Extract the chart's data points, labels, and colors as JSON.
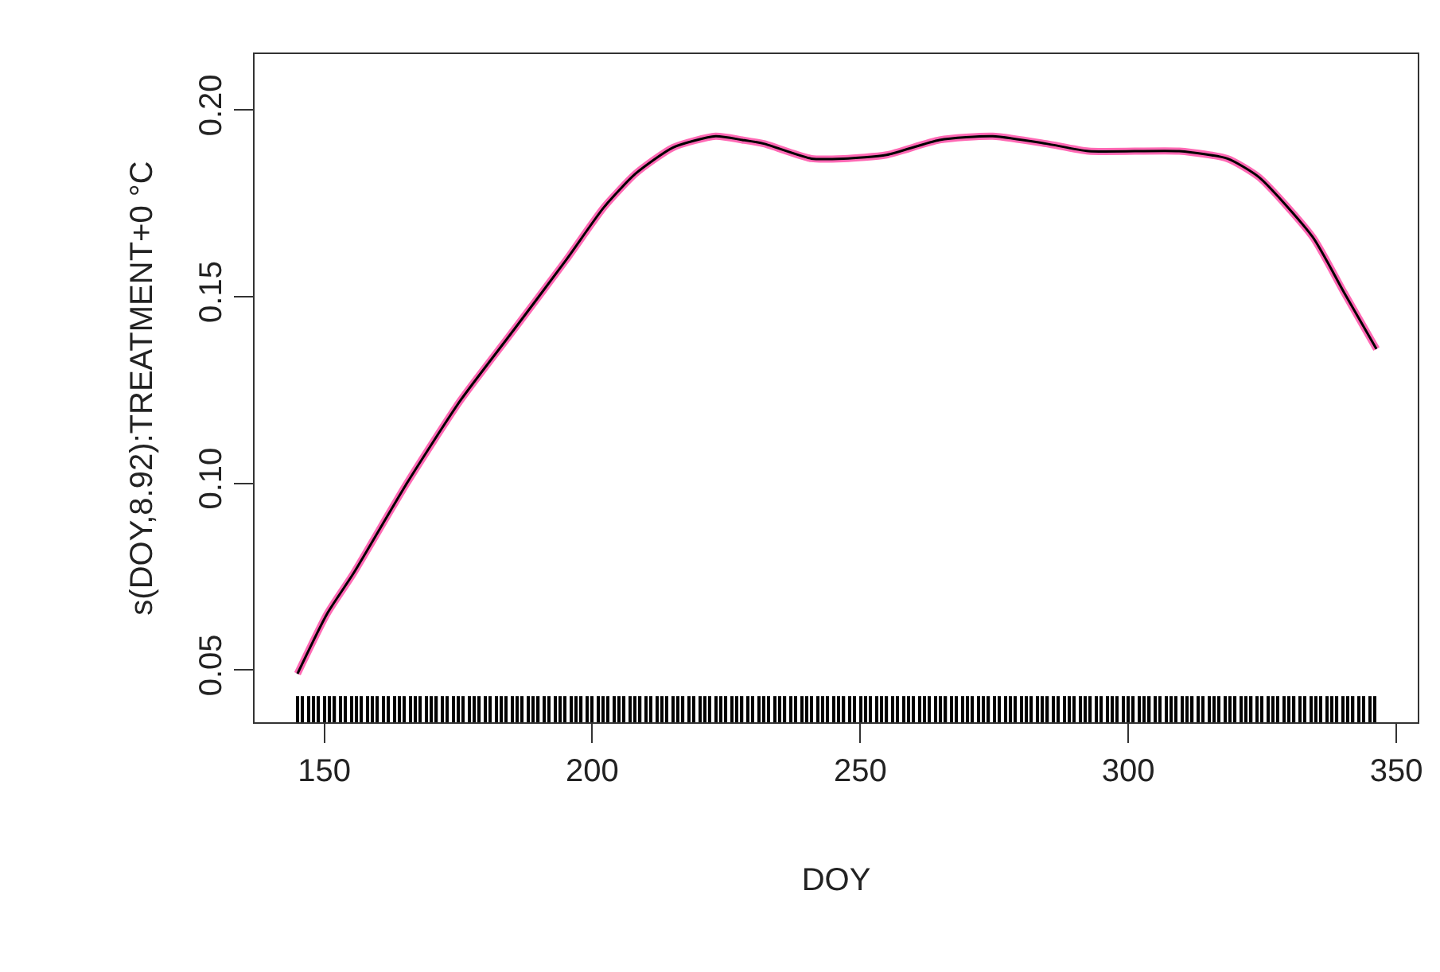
{
  "chart_data": {
    "type": "line",
    "xlabel": "DOY",
    "ylabel": "s(DOY,8.92):TREATMENT+0 °C",
    "xlim": [
      137,
      354
    ],
    "ylim": [
      0.036,
      0.215
    ],
    "xticks": [
      150,
      200,
      250,
      300,
      350
    ],
    "yticks": [
      {
        "value": 0.05,
        "label": "0.05"
      },
      {
        "value": 0.1,
        "label": "0.10"
      },
      {
        "value": 0.15,
        "label": "0.15"
      },
      {
        "value": 0.2,
        "label": "0.20"
      }
    ],
    "series": [
      {
        "color": "#ff69b4",
        "line_style": "solid",
        "marker": "none",
        "x": [
          145,
          150.5,
          155.5,
          165.4,
          175.3,
          185.3,
          195.2,
          202.2,
          208.1,
          215.1,
          223,
          228,
          232,
          240.9,
          246.9,
          254.9,
          264.8,
          274.7,
          284.7,
          292.6,
          309.5,
          318.5,
          324.4,
          334.4,
          340.3,
          346.3
        ],
        "values": [
          0.049,
          0.065,
          0.076,
          0.1,
          0.122,
          0.141,
          0.16,
          0.174,
          0.183,
          0.19,
          0.193,
          0.192,
          0.191,
          0.187,
          0.187,
          0.188,
          0.192,
          0.193,
          0.191,
          0.189,
          0.189,
          0.187,
          0.182,
          0.166,
          0.151,
          0.136
        ]
      },
      {
        "color": "#000000",
        "line_style": "solid",
        "marker": "none",
        "x": [
          145,
          150.5,
          155.5,
          165.4,
          175.3,
          185.3,
          195.2,
          202.2,
          208.1,
          215.1,
          223,
          228,
          232,
          240.9,
          246.9,
          254.9,
          264.8,
          274.7,
          284.7,
          292.6,
          309.5,
          318.5,
          324.4,
          334.4,
          340.3,
          346.3
        ],
        "values": [
          0.049,
          0.065,
          0.076,
          0.1,
          0.122,
          0.141,
          0.16,
          0.174,
          0.183,
          0.19,
          0.193,
          0.192,
          0.191,
          0.187,
          0.187,
          0.188,
          0.192,
          0.193,
          0.191,
          0.189,
          0.189,
          0.187,
          0.182,
          0.166,
          0.151,
          0.136
        ]
      },
      {
        "type": "bar",
        "color": "#000000",
        "x": [
          145,
          146,
          147,
          148,
          149,
          150,
          151,
          152,
          153,
          154,
          155,
          156,
          157,
          158,
          159,
          160,
          161,
          162,
          163,
          164,
          165,
          166,
          167,
          168,
          169,
          170,
          171,
          172,
          173,
          174,
          175,
          176,
          177,
          178,
          179,
          180,
          181,
          182,
          183,
          184,
          185,
          186,
          187,
          188,
          189,
          190,
          191,
          192,
          193,
          194,
          195,
          196,
          197,
          198,
          199,
          200,
          201,
          202,
          203,
          204,
          205,
          206,
          207,
          208,
          209,
          210,
          211,
          212,
          213,
          214,
          215,
          216,
          217,
          218,
          219,
          220,
          221,
          222,
          223,
          224,
          225,
          226,
          227,
          228,
          229,
          230,
          231,
          232,
          233,
          234,
          235,
          236,
          237,
          238,
          239,
          240,
          241,
          242,
          243,
          244,
          245,
          246,
          247,
          248,
          249,
          250,
          251,
          252,
          253,
          254,
          255,
          256,
          257,
          258,
          259,
          260,
          261,
          262,
          263,
          264,
          265,
          266,
          267,
          268,
          269,
          270,
          271,
          272,
          273,
          274,
          275,
          276,
          277,
          278,
          279,
          280,
          281,
          282,
          283,
          284,
          285,
          286,
          287,
          288,
          289,
          290,
          291,
          292,
          293,
          294,
          295,
          296,
          297,
          298,
          299,
          300,
          301,
          302,
          303,
          304,
          305,
          306,
          307,
          308,
          309,
          310,
          311,
          312,
          313,
          314,
          315,
          316,
          317,
          318,
          319,
          320,
          321,
          322,
          323,
          324,
          325,
          326,
          327,
          328,
          329,
          330,
          331,
          332,
          333,
          334,
          335,
          336,
          337,
          338,
          339,
          340,
          341,
          342,
          343,
          344,
          345,
          346
        ],
        "values": [
          0.007,
          0.007,
          0.007,
          0.007,
          0.007,
          0.007,
          0.007,
          0.007,
          0.007,
          0.007,
          0.007,
          0.007,
          0.007,
          0.007,
          0.007,
          0.007,
          0.007,
          0.007,
          0.007,
          0.007,
          0.007,
          0.007,
          0.007,
          0.007,
          0.007,
          0.007,
          0.007,
          0.007,
          0.007,
          0.007,
          0.007,
          0.007,
          0.007,
          0.007,
          0.007,
          0.007,
          0.007,
          0.007,
          0.007,
          0.007,
          0.007,
          0.007,
          0.007,
          0.007,
          0.007,
          0.007,
          0.007,
          0.007,
          0.007,
          0.007,
          0.007,
          0.007,
          0.007,
          0.007,
          0.007,
          0.007,
          0.007,
          0.007,
          0.007,
          0.007,
          0.007,
          0.007,
          0.007,
          0.007,
          0.007,
          0.007,
          0.007,
          0.007,
          0.007,
          0.007,
          0.007,
          0.007,
          0.007,
          0.007,
          0.007,
          0.007,
          0.007,
          0.007,
          0.007,
          0.007,
          0.007,
          0.007,
          0.007,
          0.007,
          0.007,
          0.007,
          0.007,
          0.007,
          0.007,
          0.007,
          0.007,
          0.007,
          0.007,
          0.007,
          0.007,
          0.007,
          0.007,
          0.007,
          0.007,
          0.007,
          0.007,
          0.007,
          0.007,
          0.007,
          0.007,
          0.007,
          0.007,
          0.007,
          0.007,
          0.007,
          0.007,
          0.007,
          0.007,
          0.007,
          0.007,
          0.007,
          0.007,
          0.007,
          0.007,
          0.007,
          0.007,
          0.007,
          0.007,
          0.007,
          0.007,
          0.007,
          0.007,
          0.007,
          0.007,
          0.007,
          0.007,
          0.007,
          0.007,
          0.007,
          0.007,
          0.007,
          0.007,
          0.007,
          0.007,
          0.007,
          0.007,
          0.007,
          0.007,
          0.007,
          0.007,
          0.007,
          0.007,
          0.007,
          0.007,
          0.007,
          0.007,
          0.007,
          0.007,
          0.007,
          0.007,
          0.007,
          0.007,
          0.007,
          0.007,
          0.007,
          0.007,
          0.007,
          0.007,
          0.007,
          0.007,
          0.007,
          0.007,
          0.007,
          0.007,
          0.007,
          0.007,
          0.007,
          0.007,
          0.007,
          0.007,
          0.007,
          0.007,
          0.007,
          0.007,
          0.007,
          0.007,
          0.007,
          0.007,
          0.007,
          0.007,
          0.007,
          0.007,
          0.007,
          0.007,
          0.007,
          0.007,
          0.007,
          0.007,
          0.007,
          0.007,
          0.007,
          0.007,
          0.007,
          0.007,
          0.007,
          0.007,
          0.007
        ],
        "base": [
          0.036,
          0.036,
          0.036,
          0.036,
          0.036,
          0.036,
          0.036,
          0.036,
          0.036,
          0.036,
          0.036,
          0.036,
          0.036,
          0.036,
          0.036,
          0.036,
          0.036,
          0.036,
          0.036,
          0.036,
          0.036,
          0.036,
          0.036,
          0.036,
          0.036,
          0.036,
          0.036,
          0.036,
          0.036,
          0.036,
          0.036,
          0.036,
          0.036,
          0.036,
          0.036,
          0.036,
          0.036,
          0.036,
          0.036,
          0.036,
          0.036,
          0.036,
          0.036,
          0.036,
          0.036,
          0.036,
          0.036,
          0.036,
          0.036,
          0.036,
          0.036,
          0.036,
          0.036,
          0.036,
          0.036,
          0.036,
          0.036,
          0.036,
          0.036,
          0.036,
          0.036,
          0.036,
          0.036,
          0.036,
          0.036,
          0.036,
          0.036,
          0.036,
          0.036,
          0.036,
          0.036,
          0.036,
          0.036,
          0.036,
          0.036,
          0.036,
          0.036,
          0.036,
          0.036,
          0.036,
          0.036,
          0.036,
          0.036,
          0.036,
          0.036,
          0.036,
          0.036,
          0.036,
          0.036,
          0.036,
          0.036,
          0.036,
          0.036,
          0.036,
          0.036,
          0.036,
          0.036,
          0.036,
          0.036,
          0.036,
          0.036,
          0.036,
          0.036,
          0.036,
          0.036,
          0.036,
          0.036,
          0.036,
          0.036,
          0.036,
          0.036,
          0.036,
          0.036,
          0.036,
          0.036,
          0.036,
          0.036,
          0.036,
          0.036,
          0.036,
          0.036,
          0.036,
          0.036,
          0.036,
          0.036,
          0.036,
          0.036,
          0.036,
          0.036,
          0.036,
          0.036,
          0.036,
          0.036,
          0.036,
          0.036,
          0.036,
          0.036,
          0.036,
          0.036,
          0.036,
          0.036,
          0.036,
          0.036,
          0.036,
          0.036,
          0.036,
          0.036,
          0.036,
          0.036,
          0.036,
          0.036,
          0.036,
          0.036,
          0.036,
          0.036,
          0.036,
          0.036,
          0.036,
          0.036,
          0.036,
          0.036,
          0.036,
          0.036,
          0.036,
          0.036,
          0.036,
          0.036,
          0.036,
          0.036,
          0.036,
          0.036,
          0.036,
          0.036,
          0.036,
          0.036,
          0.036,
          0.036,
          0.036,
          0.036,
          0.036,
          0.036,
          0.036,
          0.036,
          0.036,
          0.036,
          0.036,
          0.036,
          0.036,
          0.036,
          0.036,
          0.036,
          0.036,
          0.036,
          0.036,
          0.036,
          0.036,
          0.036,
          0.036,
          0.036,
          0.036,
          0.036,
          0.036
        ]
      }
    ]
  }
}
